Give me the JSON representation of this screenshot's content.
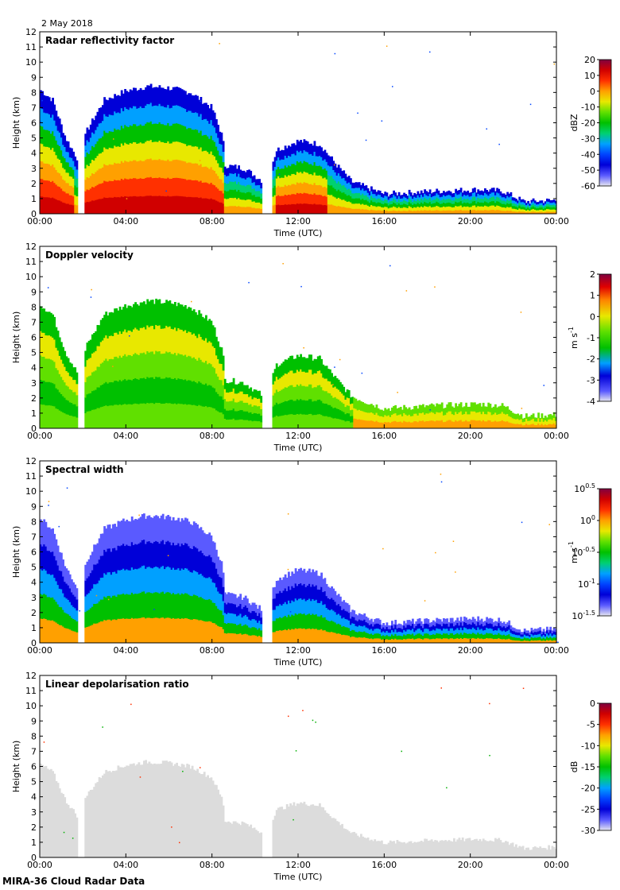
{
  "date_label": "2 May 2018",
  "footer": "MIRA-36 Cloud Radar Data",
  "colors": {
    "rainbow": [
      "#e6e6f0",
      "#5a5aff",
      "#0000d8",
      "#0044ff",
      "#00a0ff",
      "#00d070",
      "#00c000",
      "#60e000",
      "#e8e800",
      "#ffa000",
      "#ff3000",
      "#d00000",
      "#800040"
    ],
    "frame": "#000000",
    "depol_gray": "#dcdcdc"
  },
  "chart_data": [
    {
      "type": "heatmap",
      "title": "Radar reflectivity factor",
      "xlabel": "Time (UTC)",
      "ylabel": "Height (km)",
      "xlim": [
        0,
        24
      ],
      "ylim": [
        0,
        12
      ],
      "x_tick_labels": [
        "00:00",
        "04:00",
        "08:00",
        "12:00",
        "16:00",
        "20:00",
        "00:00"
      ],
      "y_ticks": [
        0,
        1,
        2,
        3,
        4,
        5,
        6,
        7,
        8,
        9,
        10,
        11,
        12
      ],
      "colorbar": {
        "label": "dBZ",
        "min": -60,
        "max": 20,
        "ticks": [
          "20",
          "10",
          "0",
          "-10",
          "-20",
          "-30",
          "-40",
          "-50",
          "-60"
        ]
      },
      "echo_top_km": [
        {
          "t": 0.0,
          "top": 8.2
        },
        {
          "t": 0.6,
          "top": 7.5
        },
        {
          "t": 1.2,
          "top": 5.0
        },
        {
          "t": 1.8,
          "top": 3.5
        },
        {
          "t": 2.2,
          "top": 5.5
        },
        {
          "t": 3.0,
          "top": 7.5
        },
        {
          "t": 4.0,
          "top": 8.1
        },
        {
          "t": 5.0,
          "top": 8.4
        },
        {
          "t": 6.0,
          "top": 8.3
        },
        {
          "t": 7.0,
          "top": 8.0
        },
        {
          "t": 8.0,
          "top": 7.0
        },
        {
          "t": 8.5,
          "top": 5.0
        },
        {
          "t": 8.6,
          "top": 3.2
        },
        {
          "t": 9.5,
          "top": 3.0
        },
        {
          "t": 10.5,
          "top": 2.0
        },
        {
          "t": 11.0,
          "top": 4.2
        },
        {
          "t": 12.0,
          "top": 4.8
        },
        {
          "t": 13.0,
          "top": 4.6
        },
        {
          "t": 13.8,
          "top": 3.2
        },
        {
          "t": 14.5,
          "top": 2.1
        },
        {
          "t": 16.0,
          "top": 1.3
        },
        {
          "t": 18.5,
          "top": 1.5
        },
        {
          "t": 20.5,
          "top": 1.6
        },
        {
          "t": 21.5,
          "top": 1.5
        },
        {
          "t": 22.5,
          "top": 0.8
        },
        {
          "t": 24.0,
          "top": 0.9
        }
      ]
    },
    {
      "type": "heatmap",
      "title": "Doppler velocity",
      "xlabel": "Time (UTC)",
      "ylabel": "Height (km)",
      "xlim": [
        0,
        24
      ],
      "ylim": [
        0,
        12
      ],
      "x_tick_labels": [
        "00:00",
        "04:00",
        "08:00",
        "12:00",
        "16:00",
        "20:00",
        "00:00"
      ],
      "y_ticks": [
        0,
        1,
        2,
        3,
        4,
        5,
        6,
        7,
        8,
        9,
        10,
        11,
        12
      ],
      "colorbar": {
        "label": "m s-1",
        "label_main": "m s",
        "label_sup": "-1",
        "min": -4,
        "max": 2,
        "ticks": [
          "2",
          "1",
          "0",
          "-1",
          "-2",
          "-3",
          "-4"
        ]
      }
    },
    {
      "type": "heatmap",
      "title": "Spectral width",
      "xlabel": "Time (UTC)",
      "ylabel": "Height (km)",
      "xlim": [
        0,
        24
      ],
      "ylim": [
        0,
        12
      ],
      "x_tick_labels": [
        "00:00",
        "04:00",
        "08:00",
        "12:00",
        "16:00",
        "20:00",
        "00:00"
      ],
      "y_ticks": [
        0,
        1,
        2,
        3,
        4,
        5,
        6,
        7,
        8,
        9,
        10,
        11,
        12
      ],
      "colorbar": {
        "label": "m s-1",
        "label_main": "m s",
        "label_sup": "-1",
        "scale": "log10",
        "min": -1.5,
        "max": 0.5,
        "ticks": [
          {
            "base": "10",
            "exp": "0.5"
          },
          {
            "base": "10",
            "exp": "0"
          },
          {
            "base": "10",
            "exp": "-0.5"
          },
          {
            "base": "10",
            "exp": "-1"
          },
          {
            "base": "10",
            "exp": "-1.5"
          }
        ]
      }
    },
    {
      "type": "heatmap",
      "title": "Linear depolarisation ratio",
      "xlabel": "Time (UTC)",
      "ylabel": "Height (km)",
      "xlim": [
        0,
        24
      ],
      "ylim": [
        0,
        12
      ],
      "x_tick_labels": [
        "00:00",
        "04:00",
        "08:00",
        "12:00",
        "16:00",
        "20:00",
        "00:00"
      ],
      "y_ticks": [
        0,
        1,
        2,
        3,
        4,
        5,
        6,
        7,
        8,
        9,
        10,
        11,
        12
      ],
      "colorbar": {
        "label": "dB",
        "min": -30,
        "max": 0,
        "ticks": [
          "0",
          "-5",
          "-10",
          "-15",
          "-20",
          "-25",
          "-30"
        ]
      }
    }
  ]
}
